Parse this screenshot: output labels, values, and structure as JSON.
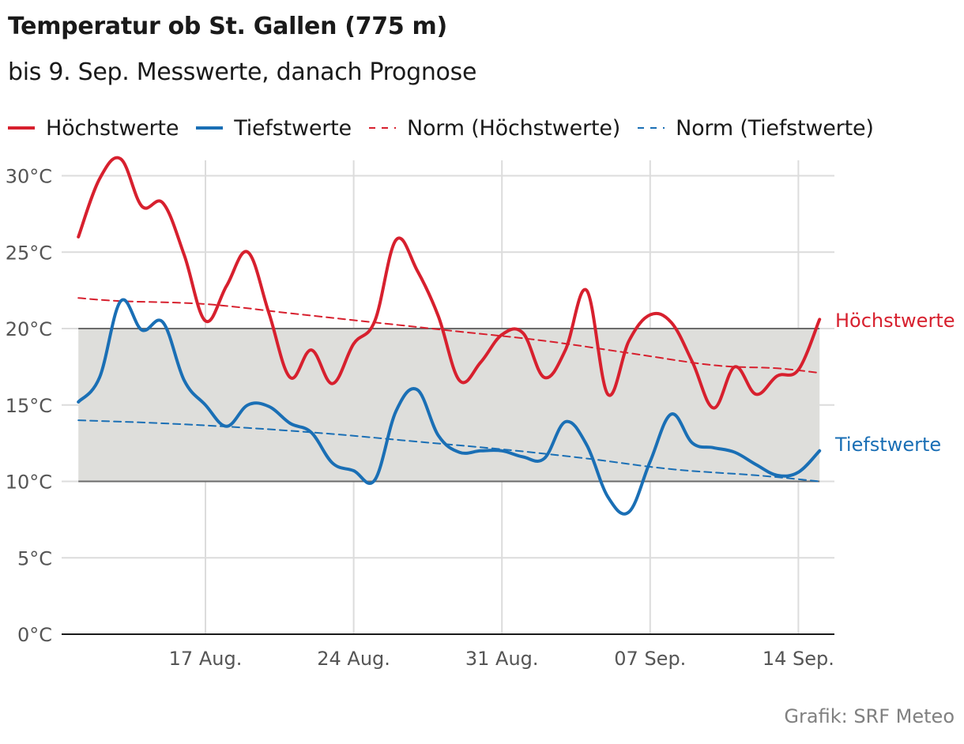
{
  "title": "Temperatur ob St. Gallen (775 m)",
  "subtitle": "bis 9. Sep. Messwerte, danach Prognose",
  "source": "Grafik: SRF Meteo",
  "colors": {
    "high": "#d7202e",
    "low": "#1a6fb5",
    "band": "#dededb",
    "grid": "#dcdcdc",
    "axis": "#1a1a1a",
    "tick": "#555555"
  },
  "legend": [
    {
      "label": "Höchstwerte",
      "color": "#d7202e",
      "style": "solid"
    },
    {
      "label": "Tiefstwerte",
      "color": "#1a6fb5",
      "style": "solid"
    },
    {
      "label": "Norm (Höchstwerte)",
      "color": "#d7202e",
      "style": "dashed"
    },
    {
      "label": "Norm (Tiefstwerte)",
      "color": "#1a6fb5",
      "style": "dashed"
    }
  ],
  "chart_data": {
    "type": "line",
    "title": "Temperatur ob St. Gallen (775 m)",
    "subtitle": "bis 9. Sep. Messwerte, danach Prognose",
    "x_start": "2024-08-10",
    "x_end": "2024-09-15",
    "x_ticks": [
      {
        "date": "2024-08-17",
        "label": "17 Aug."
      },
      {
        "date": "2024-08-24",
        "label": "24 Aug."
      },
      {
        "date": "2024-08-31",
        "label": "31 Aug."
      },
      {
        "date": "2024-09-07",
        "label": "07 Sep."
      },
      {
        "date": "2024-09-14",
        "label": "14 Sep."
      }
    ],
    "ylim": [
      0,
      31
    ],
    "y_ticks": [
      {
        "value": 0,
        "label": "0°C"
      },
      {
        "value": 5,
        "label": "5°C"
      },
      {
        "value": 10,
        "label": "10°C"
      },
      {
        "value": 15,
        "label": "15°C"
      },
      {
        "value": 20,
        "label": "20°C"
      },
      {
        "value": 25,
        "label": "25°C"
      },
      {
        "value": 30,
        "label": "30°C"
      }
    ],
    "band": {
      "from": 10,
      "to": 20
    },
    "grid": true,
    "legend_position": "top-left",
    "series": [
      {
        "name": "Höchstwerte",
        "end_label": "Höchstwerte",
        "style": "solid",
        "color": "#d7202e",
        "points": [
          [
            "2024-08-11",
            26.0
          ],
          [
            "2024-08-12",
            29.8
          ],
          [
            "2024-08-13",
            31.1
          ],
          [
            "2024-08-14",
            28.0
          ],
          [
            "2024-08-15",
            28.2
          ],
          [
            "2024-08-16",
            24.8
          ],
          [
            "2024-08-17",
            20.5
          ],
          [
            "2024-08-18",
            22.8
          ],
          [
            "2024-08-19",
            25.0
          ],
          [
            "2024-08-20",
            21.0
          ],
          [
            "2024-08-21",
            16.8
          ],
          [
            "2024-08-22",
            18.6
          ],
          [
            "2024-08-23",
            16.4
          ],
          [
            "2024-08-24",
            19.0
          ],
          [
            "2024-08-25",
            20.5
          ],
          [
            "2024-08-26",
            25.8
          ],
          [
            "2024-08-27",
            23.8
          ],
          [
            "2024-08-28",
            20.8
          ],
          [
            "2024-08-29",
            16.6
          ],
          [
            "2024-08-30",
            17.8
          ],
          [
            "2024-08-31",
            19.6
          ],
          [
            "2024-09-01",
            19.7
          ],
          [
            "2024-09-02",
            16.8
          ],
          [
            "2024-09-03",
            18.6
          ],
          [
            "2024-09-04",
            22.5
          ],
          [
            "2024-09-05",
            15.7
          ],
          [
            "2024-09-06",
            19.2
          ],
          [
            "2024-09-07",
            20.9
          ],
          [
            "2024-09-08",
            20.4
          ],
          [
            "2024-09-09",
            17.8
          ],
          [
            "2024-09-10",
            14.8
          ],
          [
            "2024-09-11",
            17.5
          ],
          [
            "2024-09-12",
            15.7
          ],
          [
            "2024-09-13",
            16.9
          ],
          [
            "2024-09-14",
            17.3
          ],
          [
            "2024-09-15",
            20.6
          ]
        ]
      },
      {
        "name": "Tiefstwerte",
        "end_label": "Tiefstwerte",
        "style": "solid",
        "color": "#1a6fb5",
        "points": [
          [
            "2024-08-11",
            15.2
          ],
          [
            "2024-08-12",
            16.8
          ],
          [
            "2024-08-13",
            21.8
          ],
          [
            "2024-08-14",
            19.9
          ],
          [
            "2024-08-15",
            20.4
          ],
          [
            "2024-08-16",
            16.6
          ],
          [
            "2024-08-17",
            15.0
          ],
          [
            "2024-08-18",
            13.6
          ],
          [
            "2024-08-19",
            15.0
          ],
          [
            "2024-08-20",
            14.9
          ],
          [
            "2024-08-21",
            13.8
          ],
          [
            "2024-08-22",
            13.2
          ],
          [
            "2024-08-23",
            11.2
          ],
          [
            "2024-08-24",
            10.7
          ],
          [
            "2024-08-25",
            10.1
          ],
          [
            "2024-08-26",
            14.6
          ],
          [
            "2024-08-27",
            16.0
          ],
          [
            "2024-08-28",
            13.0
          ],
          [
            "2024-08-29",
            11.9
          ],
          [
            "2024-08-30",
            12.0
          ],
          [
            "2024-08-31",
            12.0
          ],
          [
            "2024-09-01",
            11.6
          ],
          [
            "2024-09-02",
            11.5
          ],
          [
            "2024-09-03",
            13.9
          ],
          [
            "2024-09-04",
            12.4
          ],
          [
            "2024-09-05",
            9.0
          ],
          [
            "2024-09-06",
            8.0
          ],
          [
            "2024-09-07",
            11.3
          ],
          [
            "2024-09-08",
            14.4
          ],
          [
            "2024-09-09",
            12.5
          ],
          [
            "2024-09-10",
            12.2
          ],
          [
            "2024-09-11",
            11.9
          ],
          [
            "2024-09-12",
            11.1
          ],
          [
            "2024-09-13",
            10.4
          ],
          [
            "2024-09-14",
            10.6
          ],
          [
            "2024-09-15",
            12.0
          ]
        ]
      },
      {
        "name": "Norm (Höchstwerte)",
        "style": "dashed",
        "color": "#d7202e",
        "points": [
          [
            "2024-08-11",
            22.0
          ],
          [
            "2024-08-13",
            21.8
          ],
          [
            "2024-08-17",
            21.6
          ],
          [
            "2024-08-21",
            21.0
          ],
          [
            "2024-08-25",
            20.4
          ],
          [
            "2024-08-29",
            19.8
          ],
          [
            "2024-09-02",
            19.2
          ],
          [
            "2024-09-06",
            18.4
          ],
          [
            "2024-09-10",
            17.6
          ],
          [
            "2024-09-13",
            17.4
          ],
          [
            "2024-09-15",
            17.1
          ]
        ]
      },
      {
        "name": "Norm (Tiefstwerte)",
        "style": "dashed",
        "color": "#1a6fb5",
        "points": [
          [
            "2024-08-11",
            14.0
          ],
          [
            "2024-08-15",
            13.8
          ],
          [
            "2024-08-19",
            13.5
          ],
          [
            "2024-08-23",
            13.1
          ],
          [
            "2024-08-27",
            12.6
          ],
          [
            "2024-08-31",
            12.1
          ],
          [
            "2024-09-04",
            11.5
          ],
          [
            "2024-09-08",
            10.8
          ],
          [
            "2024-09-12",
            10.4
          ],
          [
            "2024-09-15",
            10.0
          ]
        ]
      }
    ]
  }
}
